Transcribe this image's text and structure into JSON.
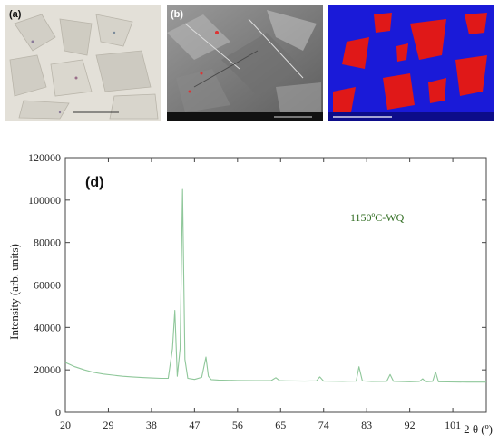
{
  "panels": [
    {
      "label": "(a)",
      "kind": "optical-micrograph"
    },
    {
      "label": "(b)",
      "kind": "sem-micrograph"
    },
    {
      "label": "",
      "kind": "phase-map"
    }
  ],
  "chart_data": {
    "type": "line",
    "panel_label": "(d)",
    "annotation": "1150ºC-WQ",
    "ylabel": "Intensity (arb. units)",
    "xlabel": "2 θ (º)",
    "xlim": [
      20,
      108
    ],
    "ylim": [
      0,
      120000
    ],
    "x_ticks": [
      20,
      29,
      38,
      47,
      56,
      65,
      74,
      83,
      92,
      101
    ],
    "y_ticks": [
      0,
      20000,
      40000,
      60000,
      80000,
      100000,
      120000
    ],
    "grid": false,
    "colors": {
      "line": "#8fc79a",
      "annotation": "#2e6b1f"
    },
    "series": [
      {
        "name": "",
        "x": [
          20,
          22,
          24,
          26,
          28,
          30,
          32,
          34,
          36,
          38,
          40,
          41.5,
          42.4,
          42.9,
          43.4,
          44.0,
          44.5,
          45.0,
          45.6,
          47,
          48.5,
          49.4,
          49.9,
          50.5,
          52,
          56,
          60,
          63,
          64.0,
          64.8,
          66,
          70,
          72.5,
          73.2,
          74,
          78,
          80.8,
          81.4,
          82.1,
          84,
          87.2,
          87.9,
          88.6,
          92,
          94,
          94.7,
          95.3,
          96.8,
          97.4,
          98.0,
          100,
          104,
          108
        ],
        "y": [
          23500,
          21500,
          20000,
          18800,
          18000,
          17500,
          17000,
          16700,
          16400,
          16200,
          16000,
          16000,
          30000,
          48000,
          17000,
          30000,
          105000,
          25000,
          16000,
          15500,
          16500,
          26000,
          17000,
          15400,
          15200,
          15000,
          14900,
          14900,
          16300,
          14900,
          14800,
          14700,
          14800,
          16700,
          14700,
          14600,
          14700,
          21500,
          14800,
          14500,
          14600,
          17800,
          14600,
          14400,
          14500,
          15800,
          14400,
          14600,
          19000,
          14400,
          14300,
          14200,
          14200
        ]
      }
    ]
  }
}
